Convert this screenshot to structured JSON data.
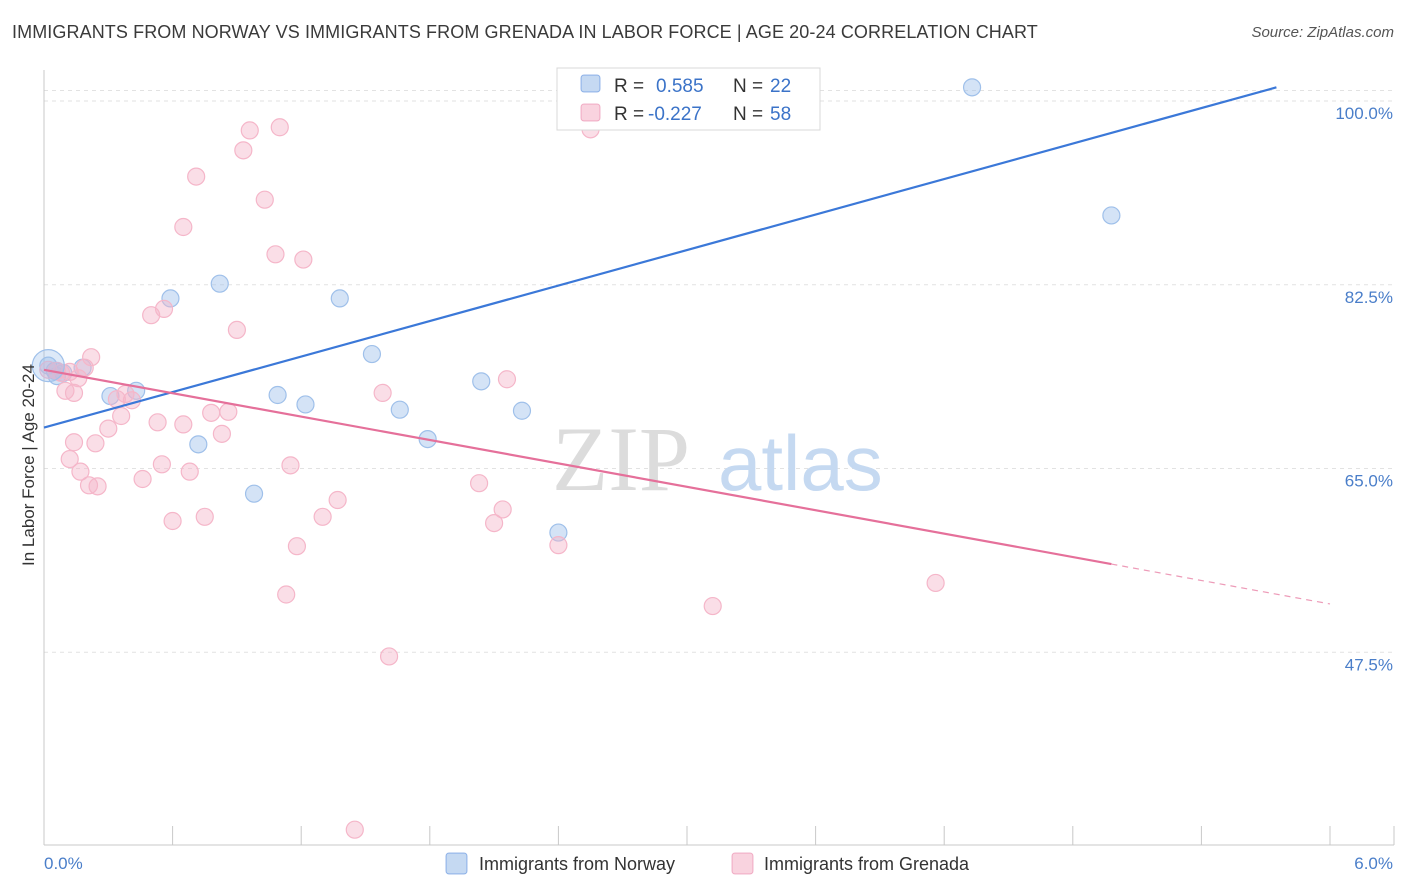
{
  "title": "IMMIGRANTS FROM NORWAY VS IMMIGRANTS FROM GRENADA IN LABOR FORCE | AGE 20-24 CORRELATION CHART",
  "source": "Source: ZipAtlas.com",
  "watermark": {
    "zip": "ZIP",
    "atlas": "atlas"
  },
  "legend_box": {
    "rows": [
      {
        "r_label": "R =",
        "r_value": "0.585",
        "n_label": "N =",
        "n_value": "22"
      },
      {
        "r_label": "R =",
        "r_value": "-0.227",
        "n_label": "N =",
        "n_value": "58"
      }
    ]
  },
  "chart_data": {
    "type": "scatter",
    "ylabel": "In Labor Force | Age 20-24",
    "xlim": [
      0.0,
      6.0
    ],
    "ylim": [
      30.0,
      102.0
    ],
    "x_tick_labels": [
      "0.0%",
      "6.0%"
    ],
    "y_ticks": [
      100.0,
      82.5,
      65.0,
      47.5
    ],
    "y_tick_labels": [
      "100.0%",
      "82.5%",
      "65.0%",
      "47.5%"
    ],
    "grid": true,
    "legend_position": "bottom",
    "series": [
      {
        "name": "Immigrants from Norway",
        "color": "#9fc0ea",
        "line_color": "#3b78d8",
        "trend": {
          "x0": 0.0,
          "y0": 68.9,
          "x1": 5.75,
          "y1": 101.3
        },
        "points": [
          [
            0.02,
            74.8
          ],
          [
            0.18,
            74.6
          ],
          [
            0.31,
            71.9
          ],
          [
            0.43,
            72.4
          ],
          [
            0.59,
            81.2
          ],
          [
            0.72,
            67.3
          ],
          [
            0.82,
            82.6
          ],
          [
            0.98,
            62.6
          ],
          [
            1.09,
            72.0
          ],
          [
            1.22,
            71.1
          ],
          [
            1.38,
            81.2
          ],
          [
            1.53,
            75.9
          ],
          [
            1.66,
            70.6
          ],
          [
            1.79,
            67.8
          ],
          [
            2.04,
            73.3
          ],
          [
            2.23,
            70.5
          ],
          [
            2.4,
            58.9
          ],
          [
            4.33,
            101.3
          ],
          [
            4.98,
            89.1
          ],
          [
            0.06,
            73.8
          ],
          [
            0.09,
            74.1
          ],
          [
            0.05,
            74.3
          ]
        ]
      },
      {
        "name": "Immigrants from Grenada",
        "color": "#f5b6c9",
        "line_color": "#e5709a",
        "trend": {
          "x0": 0.0,
          "y0": 74.4,
          "x1": 4.98,
          "y1": 55.9,
          "dash_x1": 6.0,
          "dash_y1": 52.1
        },
        "points": [
          [
            0.02,
            74.4
          ],
          [
            0.08,
            74.1
          ],
          [
            0.14,
            72.2
          ],
          [
            0.1,
            72.4
          ],
          [
            0.16,
            73.6
          ],
          [
            0.19,
            74.6
          ],
          [
            0.22,
            75.6
          ],
          [
            0.14,
            67.5
          ],
          [
            0.24,
            67.4
          ],
          [
            0.12,
            65.9
          ],
          [
            0.17,
            64.7
          ],
          [
            0.21,
            63.4
          ],
          [
            0.25,
            63.3
          ],
          [
            0.3,
            68.8
          ],
          [
            0.34,
            71.6
          ],
          [
            0.38,
            72.1
          ],
          [
            0.36,
            70.0
          ],
          [
            0.41,
            71.5
          ],
          [
            0.46,
            64.0
          ],
          [
            0.5,
            79.6
          ],
          [
            0.53,
            69.4
          ],
          [
            0.56,
            80.2
          ],
          [
            0.6,
            60.0
          ],
          [
            0.65,
            88.0
          ],
          [
            0.68,
            64.7
          ],
          [
            0.71,
            92.8
          ],
          [
            0.75,
            60.4
          ],
          [
            0.78,
            70.3
          ],
          [
            0.83,
            68.3
          ],
          [
            0.86,
            70.4
          ],
          [
            0.9,
            78.2
          ],
          [
            0.93,
            95.3
          ],
          [
            0.96,
            97.2
          ],
          [
            1.03,
            90.6
          ],
          [
            1.08,
            85.4
          ],
          [
            1.1,
            97.5
          ],
          [
            1.15,
            65.3
          ],
          [
            1.18,
            57.6
          ],
          [
            1.21,
            84.9
          ],
          [
            1.13,
            53.0
          ],
          [
            1.3,
            60.4
          ],
          [
            1.37,
            62.0
          ],
          [
            1.45,
            30.6
          ],
          [
            1.58,
            72.2
          ],
          [
            1.61,
            47.1
          ],
          [
            2.03,
            63.6
          ],
          [
            2.1,
            59.8
          ],
          [
            2.14,
            61.1
          ],
          [
            2.16,
            73.5
          ],
          [
            2.4,
            57.7
          ],
          [
            2.46,
            100.2
          ],
          [
            2.55,
            97.3
          ],
          [
            3.12,
            51.9
          ],
          [
            4.16,
            54.1
          ],
          [
            0.65,
            69.2
          ],
          [
            0.55,
            65.4
          ],
          [
            0.12,
            74.2
          ],
          [
            0.06,
            74.3
          ]
        ]
      }
    ]
  }
}
